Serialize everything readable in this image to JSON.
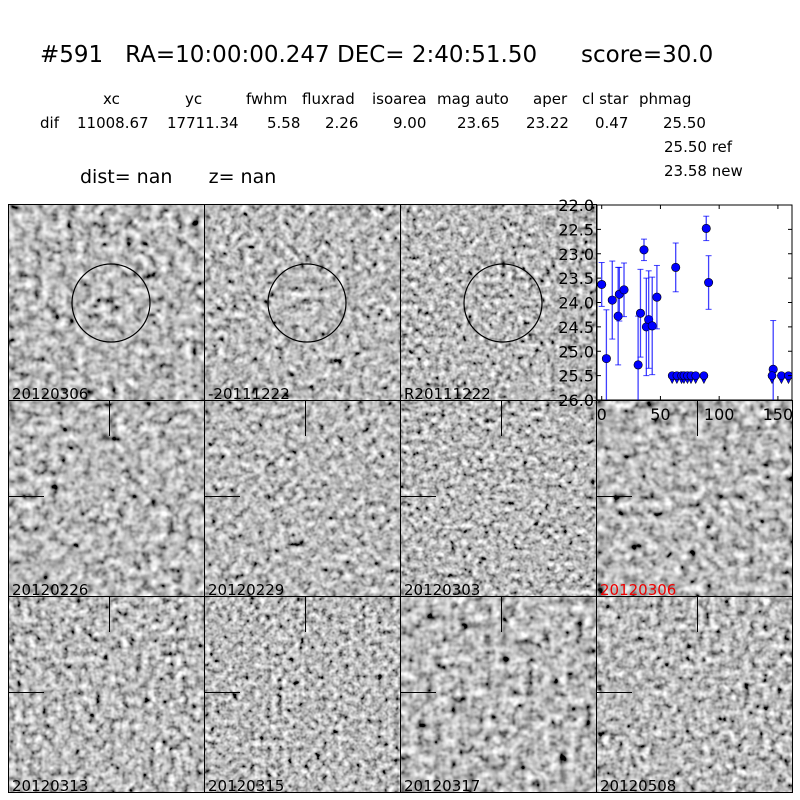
{
  "title": {
    "id": "#591",
    "ra": "RA=10:00:00.247",
    "dec": "DEC= 2:40:51.50",
    "score": "score=30.0"
  },
  "table": {
    "headers": [
      "xc",
      "yc",
      "fwhm",
      "fluxrad",
      "isoarea",
      "mag auto",
      "aper",
      "cl star",
      "phmag"
    ],
    "row_label": "dif",
    "values": [
      "11008.67",
      "17711.34",
      "5.58",
      "2.26",
      "9.00",
      "23.65",
      "23.22",
      "0.47",
      "25.50"
    ],
    "ref": "25.50 ref",
    "new": "23.58 new"
  },
  "dist": {
    "dist": "dist=   nan",
    "z": "z=   nan"
  },
  "stamps": [
    {
      "label": "20120306",
      "circle": true
    },
    {
      "label": "-20111222",
      "circle": true
    },
    {
      "label": "R20111222",
      "circle": true
    },
    {
      "label": "20120226"
    },
    {
      "label": "20120229"
    },
    {
      "label": "20120303"
    },
    {
      "label": "20120306",
      "highlight": "#e00000"
    },
    {
      "label": "20120313"
    },
    {
      "label": "20120315"
    },
    {
      "label": "20120317"
    },
    {
      "label": "20120508"
    }
  ],
  "chart_data": {
    "type": "scatter",
    "xlim": [
      -4,
      162
    ],
    "ylim": [
      26.0,
      22.0
    ],
    "y_inverted": true,
    "xticks": [
      "0",
      "50",
      "100",
      "150"
    ],
    "xtick_values": [
      0,
      50,
      100,
      150
    ],
    "yticks": [
      "22.0",
      "22.5",
      "23.0",
      "23.5",
      "24.0",
      "24.5",
      "25.0",
      "25.5",
      "26.0"
    ],
    "ytick_values": [
      22.0,
      22.5,
      23.0,
      23.5,
      24.0,
      24.5,
      25.0,
      25.5,
      26.0
    ],
    "color": "#0000ff",
    "detections": [
      {
        "x": 0,
        "y": 23.63,
        "err": 0.45
      },
      {
        "x": 4,
        "y": 25.15,
        "err": 1.0
      },
      {
        "x": 9,
        "y": 23.95,
        "err": 0.8
      },
      {
        "x": 14,
        "y": 24.28,
        "err": 1.0
      },
      {
        "x": 15,
        "y": 23.83,
        "err": 0.55
      },
      {
        "x": 19,
        "y": 23.74,
        "err": 0.55
      },
      {
        "x": 31,
        "y": 25.28,
        "err": 1.0
      },
      {
        "x": 33,
        "y": 24.22,
        "err": 0.9
      },
      {
        "x": 36,
        "y": 22.92,
        "err": 0.22
      },
      {
        "x": 38,
        "y": 24.5,
        "err": 1.0
      },
      {
        "x": 40,
        "y": 24.35,
        "err": 1.0
      },
      {
        "x": 43,
        "y": 24.48,
        "err": 1.0
      },
      {
        "x": 47,
        "y": 23.89,
        "err": 0.65
      },
      {
        "x": 63,
        "y": 23.28,
        "err": 0.5
      },
      {
        "x": 89,
        "y": 22.48,
        "err": 0.25
      },
      {
        "x": 91,
        "y": 23.59,
        "err": 0.55
      },
      {
        "x": 146,
        "y": 25.37,
        "err": 1.0
      }
    ],
    "upper_limits": [
      {
        "x": 60,
        "y": 25.5
      },
      {
        "x": 64,
        "y": 25.5
      },
      {
        "x": 68,
        "y": 25.5
      },
      {
        "x": 70,
        "y": 25.5
      },
      {
        "x": 73,
        "y": 25.5
      },
      {
        "x": 76,
        "y": 25.5
      },
      {
        "x": 80,
        "y": 25.5
      },
      {
        "x": 87,
        "y": 25.5
      },
      {
        "x": 145,
        "y": 25.5
      },
      {
        "x": 153,
        "y": 25.5
      },
      {
        "x": 159,
        "y": 25.5
      }
    ]
  }
}
